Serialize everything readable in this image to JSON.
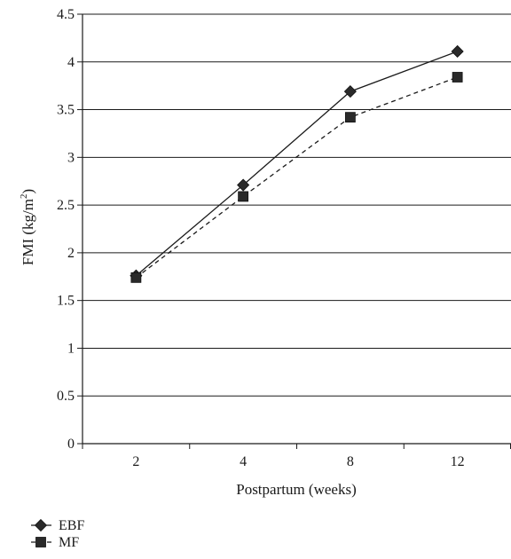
{
  "chart_data": {
    "type": "line",
    "categories": [
      "2",
      "4",
      "8",
      "12"
    ],
    "series": [
      {
        "name": "EBF",
        "values": [
          1.76,
          2.71,
          3.69,
          4.11
        ],
        "marker": "diamond",
        "line": "solid",
        "color": "#1a1a1a"
      },
      {
        "name": "MF",
        "values": [
          1.74,
          2.59,
          3.42,
          3.84
        ],
        "marker": "square",
        "line": "dashed",
        "color": "#1a1a1a"
      }
    ],
    "xlabel": "Postpartum (weeks)",
    "ylabel": {
      "prefix": "FMI (kg/m",
      "sup": "2",
      "suffix": ")"
    },
    "ylim": [
      0,
      4.5
    ],
    "yticks": [
      "0",
      "0.5",
      "1",
      "1.5",
      "2",
      "2.5",
      "3",
      "3.5",
      "4",
      "4.5"
    ],
    "grid": "horizontal",
    "legend_position": "bottom-left"
  }
}
